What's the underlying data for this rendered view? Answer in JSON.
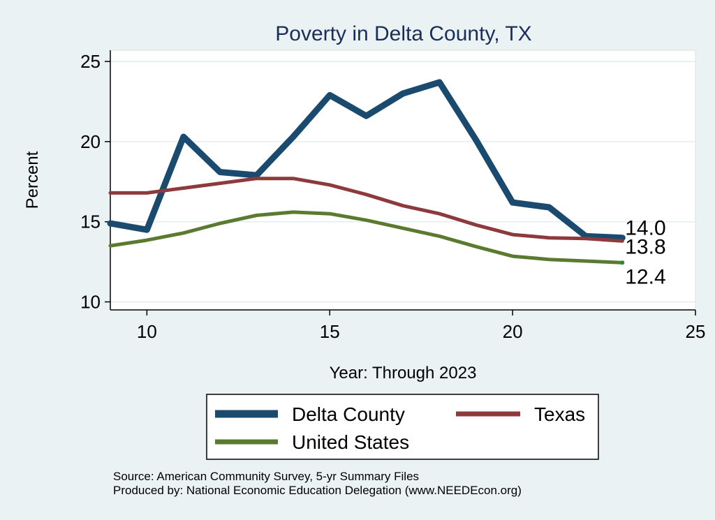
{
  "chart_data": {
    "type": "line",
    "title": "Poverty in Delta County, TX",
    "xlabel": "Year: Through 2023",
    "ylabel": "Percent",
    "xlim": [
      9,
      25
    ],
    "ylim": [
      9.5,
      25.7
    ],
    "xticks": [
      10,
      15,
      20,
      25
    ],
    "yticks": [
      10,
      15,
      20,
      25
    ],
    "grid": true,
    "legend_position": "bottom",
    "series": [
      {
        "name": "Delta County",
        "color": "#1a4a6e",
        "width": 9,
        "end_label": "14.0",
        "x": [
          9,
          10,
          11,
          12,
          13,
          14,
          15,
          16,
          17,
          18,
          19,
          20,
          21,
          22,
          23
        ],
        "y": [
          14.9,
          14.5,
          20.3,
          18.1,
          17.9,
          20.3,
          22.9,
          21.6,
          23.0,
          23.7,
          20.1,
          16.2,
          15.9,
          14.1,
          14.0
        ]
      },
      {
        "name": "Texas",
        "color": "#8e3a3c",
        "width": 5,
        "end_label": "13.8",
        "x": [
          9,
          10,
          11,
          12,
          13,
          14,
          15,
          16,
          17,
          18,
          19,
          20,
          21,
          22,
          23
        ],
        "y": [
          16.8,
          16.8,
          17.1,
          17.4,
          17.7,
          17.7,
          17.3,
          16.7,
          16.0,
          15.5,
          14.8,
          14.2,
          14.0,
          13.95,
          13.8
        ]
      },
      {
        "name": "United States",
        "color": "#5a7a30",
        "width": 5,
        "end_label": "12.4",
        "x": [
          9,
          10,
          11,
          12,
          13,
          14,
          15,
          16,
          17,
          18,
          19,
          20,
          21,
          22,
          23
        ],
        "y": [
          13.5,
          13.85,
          14.3,
          14.9,
          15.4,
          15.6,
          15.5,
          15.1,
          14.6,
          14.1,
          13.45,
          12.85,
          12.65,
          12.55,
          12.45
        ]
      }
    ]
  },
  "source": {
    "line1": "Source: American Community Survey, 5-yr Summary Files",
    "line2": "Produced by: National Economic Education Delegation (www.NEEDEcon.org)"
  }
}
